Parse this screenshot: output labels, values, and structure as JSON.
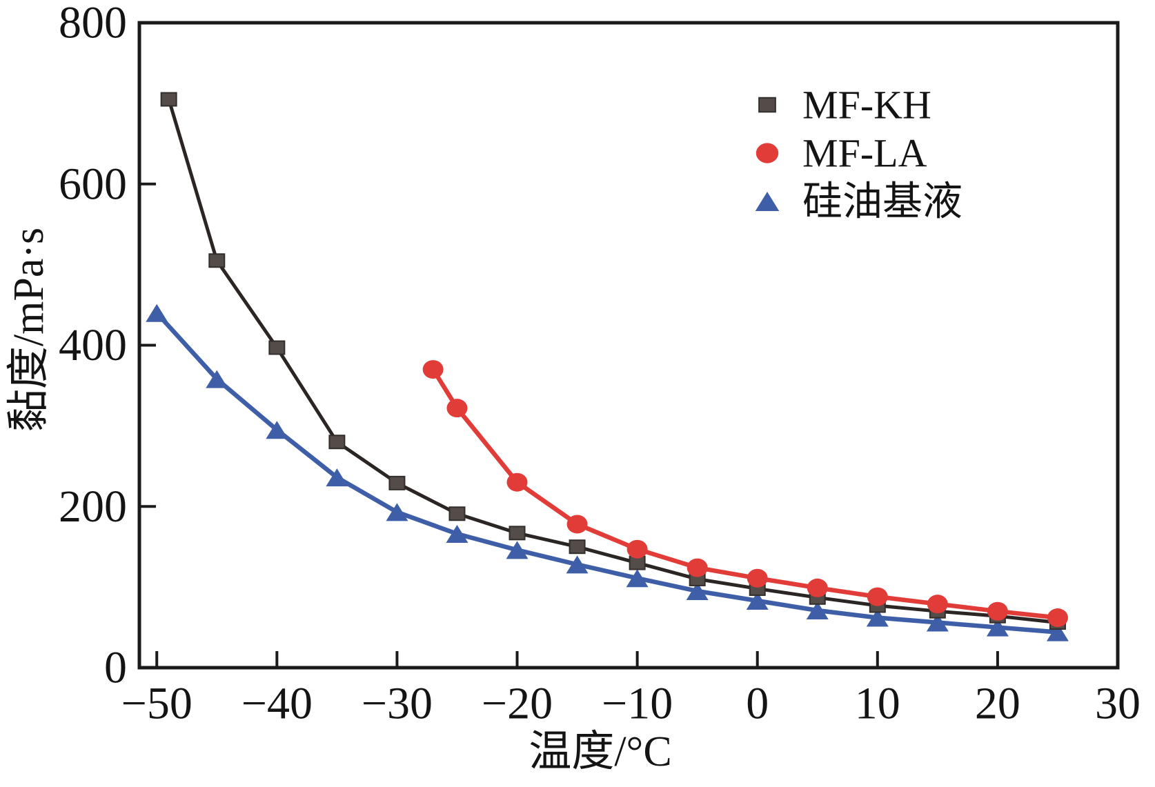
{
  "figure": {
    "background_color": "#ffffff",
    "frame_color": "#1a1a1a",
    "accent_colors": {
      "mf_kh_marker": "#544c48",
      "mf_kh_line": "#2b2624",
      "mf_la": "#e23c38",
      "silicone_base": "#3e5fa7"
    }
  },
  "legend": {
    "entries": [
      {
        "label": "MF-KH",
        "marker": "square-icon",
        "color": "#544c48"
      },
      {
        "label": "MF-LA",
        "marker": "circle-icon",
        "color": "#e23c38"
      },
      {
        "label": "硅油基液",
        "marker": "triangle-icon",
        "color": "#3e5fa7"
      }
    ]
  },
  "chart_data": {
    "type": "line",
    "title": "",
    "xlabel": "温度/°C",
    "ylabel": "黏度/mPa·s",
    "xlim": [
      -51.45,
      30
    ],
    "ylim": [
      0,
      800
    ],
    "grid": false,
    "legend_position": "upper-right-inside",
    "x_ticks": [
      -50,
      -40,
      -30,
      -20,
      -10,
      0,
      10,
      20,
      30
    ],
    "x_tick_labels": [
      "−50",
      "−40",
      "−30",
      "−20",
      "−10",
      "0",
      "10",
      "20",
      "30"
    ],
    "y_ticks": [
      0,
      200,
      400,
      600,
      800
    ],
    "y_tick_labels": [
      "0",
      "200",
      "400",
      "600",
      "800"
    ],
    "series": [
      {
        "name": "MF-KH",
        "marker": "square",
        "color": "#544c48",
        "line_color": "#2b2624",
        "points": [
          [
            -49,
            705
          ],
          [
            -45,
            505
          ],
          [
            -40,
            397
          ],
          [
            -35,
            280
          ],
          [
            -30,
            229
          ],
          [
            -25,
            191
          ],
          [
            -20,
            167
          ],
          [
            -15,
            150
          ],
          [
            -10,
            130
          ],
          [
            -5,
            110
          ],
          [
            0,
            98
          ],
          [
            5,
            87
          ],
          [
            10,
            77
          ],
          [
            15,
            70
          ],
          [
            20,
            64
          ],
          [
            25,
            56
          ]
        ]
      },
      {
        "name": "MF-LA",
        "marker": "circle",
        "color": "#e23c38",
        "line_color": "#e23c38",
        "points": [
          [
            -27,
            370
          ],
          [
            -25,
            322
          ],
          [
            -20,
            230
          ],
          [
            -15,
            178
          ],
          [
            -10,
            147
          ],
          [
            -5,
            124
          ],
          [
            0,
            111
          ],
          [
            5,
            99
          ],
          [
            10,
            88
          ],
          [
            15,
            79
          ],
          [
            20,
            70
          ],
          [
            25,
            62
          ]
        ]
      },
      {
        "name": "硅油基液",
        "marker": "triangle",
        "color": "#3e5fa7",
        "line_color": "#3e5fa7",
        "points": [
          [
            -50,
            440
          ],
          [
            -45,
            358
          ],
          [
            -40,
            295
          ],
          [
            -35,
            236
          ],
          [
            -30,
            193
          ],
          [
            -25,
            166
          ],
          [
            -20,
            146
          ],
          [
            -15,
            128
          ],
          [
            -10,
            111
          ],
          [
            -5,
            95
          ],
          [
            0,
            83
          ],
          [
            5,
            71
          ],
          [
            10,
            62
          ],
          [
            15,
            56
          ],
          [
            20,
            50
          ],
          [
            25,
            44
          ]
        ]
      }
    ]
  }
}
